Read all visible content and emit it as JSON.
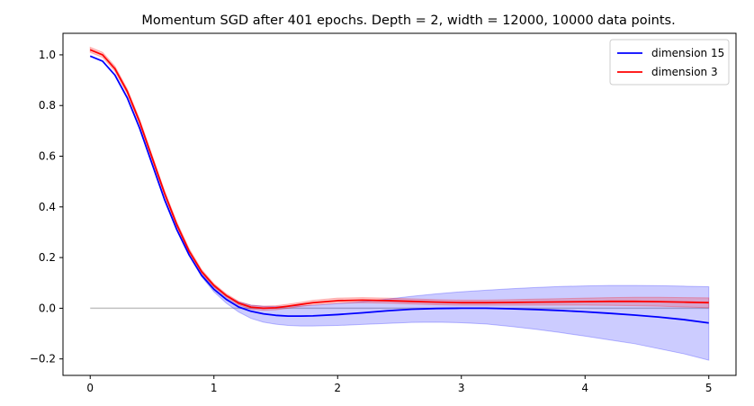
{
  "chart_data": {
    "type": "line",
    "title": "Momentum SGD after 401 epochs. Depth = 2, width = 12000, 10000 data points.",
    "xlabel": "",
    "ylabel": "",
    "xlim": [
      -0.22,
      5.22
    ],
    "ylim": [
      -0.265,
      1.085
    ],
    "xticks": [
      0,
      1,
      2,
      3,
      4,
      5
    ],
    "xtick_labels": [
      "0",
      "1",
      "2",
      "3",
      "4",
      "5"
    ],
    "yticks": [
      -0.2,
      0.0,
      0.2,
      0.4,
      0.6,
      0.8,
      1.0
    ],
    "ytick_labels": [
      "−0.2",
      "0.0",
      "0.2",
      "0.4",
      "0.6",
      "0.8",
      "1.0"
    ],
    "grid": false,
    "legend_position": "upper right",
    "reference_line": {
      "y": 0,
      "x": [
        0,
        5
      ],
      "color": "#c0c0c0"
    },
    "series": [
      {
        "name": "dimension 15",
        "color": "#0000ff",
        "x": [
          0,
          0.1,
          0.2,
          0.3,
          0.4,
          0.5,
          0.6,
          0.7,
          0.8,
          0.9,
          1.0,
          1.1,
          1.2,
          1.3,
          1.4,
          1.5,
          1.6,
          1.7,
          1.8,
          2.0,
          2.2,
          2.4,
          2.6,
          2.8,
          3.0,
          3.2,
          3.4,
          3.6,
          3.8,
          4.0,
          4.2,
          4.4,
          4.6,
          4.8,
          5.0
        ],
        "y": [
          0.995,
          0.975,
          0.92,
          0.83,
          0.71,
          0.57,
          0.43,
          0.31,
          0.21,
          0.13,
          0.075,
          0.035,
          0.005,
          -0.012,
          -0.022,
          -0.028,
          -0.031,
          -0.031,
          -0.03,
          -0.025,
          -0.018,
          -0.01,
          -0.004,
          -0.001,
          0.0,
          0.0,
          -0.002,
          -0.005,
          -0.009,
          -0.014,
          -0.02,
          -0.027,
          -0.035,
          -0.045,
          -0.058
        ],
        "lower": [
          0.995,
          0.975,
          0.92,
          0.83,
          0.71,
          0.57,
          0.43,
          0.31,
          0.21,
          0.125,
          0.065,
          0.02,
          -0.015,
          -0.04,
          -0.055,
          -0.063,
          -0.068,
          -0.07,
          -0.07,
          -0.068,
          -0.064,
          -0.06,
          -0.056,
          -0.055,
          -0.057,
          -0.062,
          -0.072,
          -0.083,
          -0.096,
          -0.11,
          -0.125,
          -0.14,
          -0.16,
          -0.18,
          -0.205
        ],
        "upper": [
          0.995,
          0.975,
          0.92,
          0.83,
          0.71,
          0.57,
          0.43,
          0.31,
          0.21,
          0.135,
          0.085,
          0.05,
          0.025,
          0.012,
          0.008,
          0.007,
          0.008,
          0.009,
          0.011,
          0.018,
          0.026,
          0.036,
          0.047,
          0.057,
          0.065,
          0.071,
          0.077,
          0.082,
          0.086,
          0.088,
          0.09,
          0.09,
          0.089,
          0.087,
          0.085
        ]
      },
      {
        "name": "dimension 3",
        "color": "#ff0000",
        "x": [
          0,
          0.1,
          0.2,
          0.3,
          0.4,
          0.5,
          0.6,
          0.7,
          0.8,
          0.9,
          1.0,
          1.1,
          1.2,
          1.3,
          1.4,
          1.5,
          1.6,
          1.7,
          1.8,
          2.0,
          2.2,
          2.4,
          2.6,
          2.8,
          3.0,
          3.2,
          3.4,
          3.6,
          3.8,
          4.0,
          4.2,
          4.4,
          4.6,
          4.8,
          5.0
        ],
        "y": [
          1.02,
          1.0,
          0.945,
          0.855,
          0.735,
          0.595,
          0.455,
          0.33,
          0.225,
          0.145,
          0.09,
          0.05,
          0.02,
          0.004,
          0.0,
          0.002,
          0.008,
          0.015,
          0.022,
          0.03,
          0.032,
          0.03,
          0.027,
          0.024,
          0.022,
          0.022,
          0.023,
          0.024,
          0.025,
          0.026,
          0.027,
          0.027,
          0.026,
          0.024,
          0.022
        ],
        "lower": [
          1.01,
          0.99,
          0.935,
          0.845,
          0.725,
          0.585,
          0.445,
          0.32,
          0.215,
          0.137,
          0.083,
          0.043,
          0.013,
          -0.004,
          -0.008,
          -0.006,
          0.0,
          0.007,
          0.013,
          0.02,
          0.022,
          0.02,
          0.017,
          0.014,
          0.012,
          0.012,
          0.012,
          0.012,
          0.012,
          0.012,
          0.011,
          0.01,
          0.008,
          0.005,
          0.002
        ],
        "upper": [
          1.03,
          1.01,
          0.955,
          0.865,
          0.745,
          0.605,
          0.465,
          0.34,
          0.235,
          0.153,
          0.097,
          0.057,
          0.027,
          0.012,
          0.008,
          0.01,
          0.016,
          0.023,
          0.031,
          0.04,
          0.042,
          0.04,
          0.037,
          0.034,
          0.032,
          0.032,
          0.034,
          0.036,
          0.038,
          0.04,
          0.042,
          0.043,
          0.043,
          0.042,
          0.041
        ]
      }
    ]
  }
}
